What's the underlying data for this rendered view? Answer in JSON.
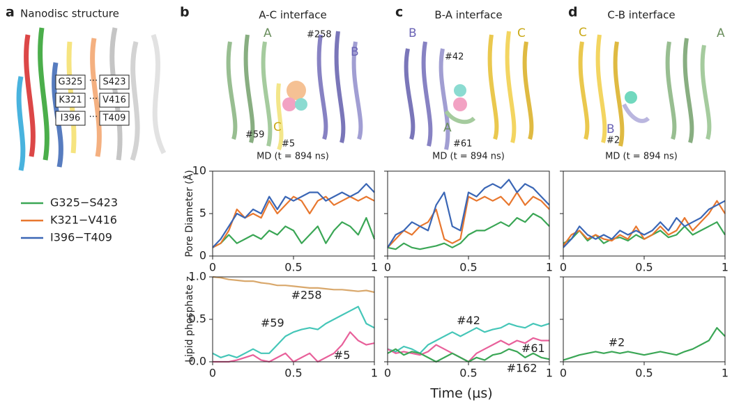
{
  "panels": [
    {
      "label": "a",
      "title": "Nanodisc structure",
      "pairs": [
        [
          "G325",
          "S423"
        ],
        [
          "K321",
          "V416"
        ],
        [
          "I396",
          "T409"
        ]
      ]
    },
    {
      "label": "b",
      "title": "A-C interface",
      "annotations": [
        "A",
        "B",
        "#258",
        "C",
        "#59",
        "#5"
      ],
      "md": "MD (t = 894 ns)"
    },
    {
      "label": "c",
      "title": "B-A interface",
      "annotations": [
        "B",
        "C",
        "#42",
        "A",
        "#61"
      ],
      "md": "MD (t = 894 ns)"
    },
    {
      "label": "d",
      "title": "C-B interface",
      "annotations": [
        "C",
        "A",
        "B",
        "#2"
      ],
      "md": "MD (t = 894 ns)"
    }
  ],
  "chart_data": [
    {
      "type": "line",
      "ylabel": "Pore Diameter (Å)",
      "legend": "outside-left",
      "x": [
        0,
        0.05,
        0.1,
        0.15,
        0.2,
        0.25,
        0.3,
        0.35,
        0.4,
        0.45,
        0.5,
        0.55,
        0.6,
        0.65,
        0.7,
        0.75,
        0.8,
        0.85,
        0.9,
        0.95,
        1
      ],
      "xlim": [
        0,
        1
      ],
      "xticks": [
        0,
        0.5,
        1
      ],
      "ylim": [
        0,
        10
      ],
      "yticks": [
        0,
        5,
        10
      ],
      "series": [
        {
          "name": "G325−S423",
          "color": "#3aa655",
          "values": [
            1.0,
            1.5,
            2.5,
            1.5,
            2.0,
            2.5,
            2.0,
            3.0,
            2.5,
            3.5,
            3.0,
            1.5,
            2.5,
            3.5,
            1.5,
            3.0,
            4.0,
            3.5,
            2.5,
            4.5,
            2.0
          ]
        },
        {
          "name": "K321−V416",
          "color": "#e8772e",
          "values": [
            1.0,
            1.5,
            3.0,
            5.5,
            4.5,
            5.0,
            4.5,
            6.5,
            5.0,
            6.0,
            7.0,
            6.5,
            5.0,
            6.5,
            7.0,
            6.0,
            6.5,
            7.0,
            6.5,
            7.0,
            6.5
          ]
        },
        {
          "name": "I396−T409",
          "color": "#3a66b5",
          "values": [
            1.0,
            2.0,
            3.5,
            5.0,
            4.5,
            5.5,
            5.0,
            7.0,
            5.5,
            7.0,
            6.5,
            7.0,
            7.5,
            7.5,
            6.5,
            7.0,
            7.5,
            7.0,
            7.5,
            8.5,
            7.5
          ]
        }
      ]
    },
    {
      "type": "line",
      "sharey": true,
      "x": [
        0,
        0.05,
        0.1,
        0.15,
        0.2,
        0.25,
        0.3,
        0.35,
        0.4,
        0.45,
        0.5,
        0.55,
        0.6,
        0.65,
        0.7,
        0.75,
        0.8,
        0.85,
        0.9,
        0.95,
        1
      ],
      "xlim": [
        0,
        1
      ],
      "xticks": [
        0,
        0.5,
        1
      ],
      "ylim": [
        0,
        10
      ],
      "yticks": [
        0,
        5,
        10
      ],
      "series": [
        {
          "color": "#3aa655",
          "values": [
            1.0,
            0.8,
            1.5,
            1.0,
            0.8,
            1.0,
            1.2,
            1.5,
            1.0,
            1.5,
            2.5,
            3.0,
            3.0,
            3.5,
            4.0,
            3.5,
            4.5,
            4.0,
            5.0,
            4.5,
            3.5
          ]
        },
        {
          "color": "#e8772e",
          "values": [
            1.0,
            2.0,
            3.0,
            2.5,
            3.5,
            4.0,
            5.5,
            2.0,
            1.5,
            2.0,
            7.0,
            6.5,
            7.0,
            6.5,
            7.0,
            6.0,
            7.5,
            6.0,
            7.0,
            6.5,
            5.5
          ]
        },
        {
          "color": "#3a66b5",
          "values": [
            1.0,
            2.5,
            3.0,
            4.0,
            3.5,
            3.0,
            6.0,
            7.5,
            3.5,
            3.0,
            7.5,
            7.0,
            8.0,
            8.5,
            8.0,
            9.0,
            7.5,
            8.5,
            8.0,
            7.0,
            6.0
          ]
        }
      ]
    },
    {
      "type": "line",
      "sharey": true,
      "x": [
        0,
        0.05,
        0.1,
        0.15,
        0.2,
        0.25,
        0.3,
        0.35,
        0.4,
        0.45,
        0.5,
        0.55,
        0.6,
        0.65,
        0.7,
        0.75,
        0.8,
        0.85,
        0.9,
        0.95,
        1
      ],
      "xlim": [
        0,
        1
      ],
      "xticks": [
        0,
        0.5,
        1
      ],
      "ylim": [
        0,
        10
      ],
      "yticks": [
        0,
        5,
        10
      ],
      "series": [
        {
          "color": "#3aa655",
          "values": [
            1.5,
            2.0,
            3.0,
            1.8,
            2.5,
            1.5,
            2.0,
            2.2,
            1.8,
            2.5,
            2.0,
            2.5,
            3.0,
            2.2,
            2.5,
            3.5,
            2.5,
            3.0,
            3.5,
            4.0,
            2.5
          ]
        },
        {
          "color": "#e8772e",
          "values": [
            1.2,
            2.5,
            3.0,
            2.0,
            2.5,
            2.0,
            1.8,
            2.5,
            2.0,
            3.5,
            2.0,
            2.5,
            3.5,
            2.5,
            3.0,
            4.5,
            3.0,
            4.0,
            5.0,
            6.5,
            5.0
          ]
        },
        {
          "color": "#3a66b5",
          "values": [
            1.0,
            2.0,
            3.5,
            2.5,
            2.0,
            2.5,
            2.0,
            3.0,
            2.5,
            3.0,
            2.5,
            3.0,
            4.0,
            3.0,
            4.5,
            3.5,
            4.0,
            4.5,
            5.5,
            6.0,
            6.5
          ]
        }
      ]
    },
    {
      "type": "line",
      "ylabel": "Lipid phosphate z",
      "x": [
        0,
        0.05,
        0.1,
        0.15,
        0.2,
        0.25,
        0.3,
        0.35,
        0.4,
        0.45,
        0.5,
        0.55,
        0.6,
        0.65,
        0.7,
        0.75,
        0.8,
        0.85,
        0.9,
        0.95,
        1
      ],
      "xlim": [
        0,
        1
      ],
      "xticks": [
        0,
        0.5,
        1
      ],
      "ylim": [
        0,
        1
      ],
      "yticks": [
        {
          "value": 0,
          "label": "0.0"
        },
        {
          "value": 0.5,
          "label": "0.5"
        },
        {
          "value": 1,
          "label": "1.0"
        }
      ],
      "series": [
        {
          "name": "#258",
          "color": "#d9a86c",
          "values": [
            1.0,
            0.99,
            0.97,
            0.96,
            0.95,
            0.95,
            0.93,
            0.92,
            0.9,
            0.9,
            0.89,
            0.88,
            0.87,
            0.87,
            0.86,
            0.85,
            0.85,
            0.84,
            0.83,
            0.84,
            0.82
          ]
        },
        {
          "name": "#59",
          "color": "#45c6b8",
          "values": [
            0.1,
            0.05,
            0.08,
            0.05,
            0.1,
            0.15,
            0.1,
            0.1,
            0.2,
            0.3,
            0.35,
            0.38,
            0.4,
            0.38,
            0.45,
            0.5,
            0.55,
            0.6,
            0.65,
            0.45,
            0.4
          ]
        },
        {
          "name": "#5",
          "color": "#e8609a",
          "values": [
            0.0,
            0.0,
            0.0,
            0.02,
            0.05,
            0.08,
            0.02,
            0.0,
            0.05,
            0.1,
            0.0,
            0.05,
            0.1,
            0.0,
            0.05,
            0.1,
            0.2,
            0.35,
            0.25,
            0.2,
            0.22
          ]
        }
      ]
    },
    {
      "type": "line",
      "sharey": true,
      "xlabel": "Time (µs)",
      "x": [
        0,
        0.05,
        0.1,
        0.15,
        0.2,
        0.25,
        0.3,
        0.35,
        0.4,
        0.45,
        0.5,
        0.55,
        0.6,
        0.65,
        0.7,
        0.75,
        0.8,
        0.85,
        0.9,
        0.95,
        1
      ],
      "xlim": [
        0,
        1
      ],
      "xticks": [
        0,
        0.5,
        1
      ],
      "ylim": [
        0,
        1
      ],
      "yticks": [
        {
          "value": 0,
          "label": "0.0"
        },
        {
          "value": 0.5,
          "label": "0.5"
        },
        {
          "value": 1,
          "label": "1.0"
        }
      ],
      "series": [
        {
          "name": "#42",
          "color": "#45c6b8",
          "values": [
            0.15,
            0.12,
            0.18,
            0.15,
            0.1,
            0.2,
            0.25,
            0.3,
            0.35,
            0.3,
            0.35,
            0.4,
            0.35,
            0.38,
            0.4,
            0.45,
            0.42,
            0.4,
            0.45,
            0.42,
            0.45
          ]
        },
        {
          "name": "#61",
          "color": "#e8609a",
          "values": [
            0.15,
            0.1,
            0.12,
            0.1,
            0.08,
            0.12,
            0.2,
            0.15,
            0.1,
            0.05,
            0.0,
            0.1,
            0.15,
            0.2,
            0.25,
            0.2,
            0.25,
            0.22,
            0.28,
            0.25,
            0.25
          ]
        },
        {
          "name": "#162",
          "color": "#3aa655",
          "values": [
            0.1,
            0.15,
            0.08,
            0.12,
            0.1,
            0.05,
            0.0,
            0.05,
            0.1,
            0.05,
            0.0,
            0.05,
            0.02,
            0.08,
            0.1,
            0.15,
            0.12,
            0.05,
            0.1,
            0.05,
            0.03
          ]
        }
      ]
    },
    {
      "type": "line",
      "sharey": true,
      "x": [
        0,
        0.05,
        0.1,
        0.15,
        0.2,
        0.25,
        0.3,
        0.35,
        0.4,
        0.45,
        0.5,
        0.55,
        0.6,
        0.65,
        0.7,
        0.75,
        0.8,
        0.85,
        0.9,
        0.95,
        1
      ],
      "xlim": [
        0,
        1
      ],
      "xticks": [
        0,
        0.5,
        1
      ],
      "ylim": [
        0,
        1
      ],
      "yticks": [
        {
          "value": 0,
          "label": "0.0"
        },
        {
          "value": 0.5,
          "label": "0.5"
        },
        {
          "value": 1,
          "label": "1.0"
        }
      ],
      "series": [
        {
          "name": "#2",
          "color": "#3aa655",
          "values": [
            0.02,
            0.05,
            0.08,
            0.1,
            0.12,
            0.1,
            0.12,
            0.1,
            0.12,
            0.1,
            0.08,
            0.1,
            0.12,
            0.1,
            0.08,
            0.12,
            0.15,
            0.2,
            0.25,
            0.4,
            0.3
          ]
        }
      ]
    }
  ]
}
